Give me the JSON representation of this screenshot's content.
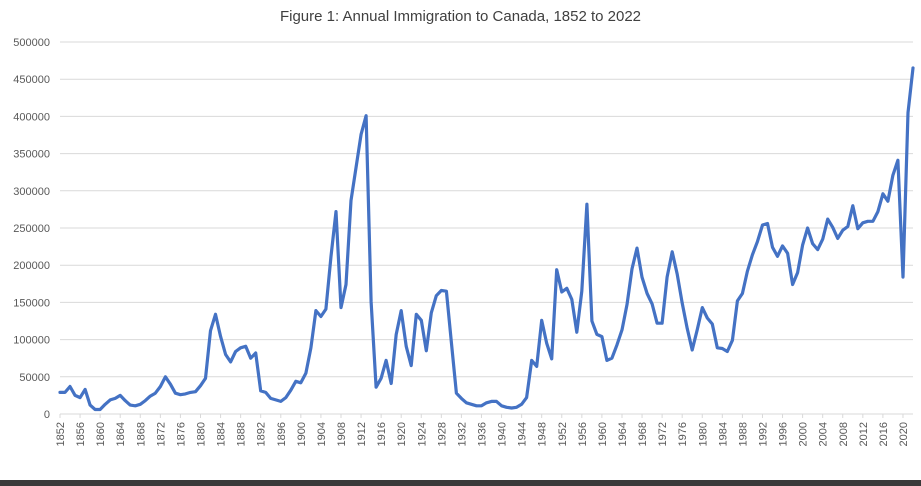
{
  "colors": {
    "line": "#4472C4",
    "grid": "#D9D9D9",
    "text": "#595959",
    "title": "#404040"
  },
  "chart_data": {
    "type": "line",
    "title": "Figure 1: Annual Immigration to Canada, 1852 to 2022",
    "xlabel": "",
    "ylabel": "",
    "xlim": [
      1852,
      2022
    ],
    "ylim": [
      0,
      500000
    ],
    "grid": true,
    "legend": "none",
    "y_ticks": [
      0,
      50000,
      100000,
      150000,
      200000,
      250000,
      300000,
      350000,
      400000,
      450000,
      500000
    ],
    "y_tick_labels": [
      "0",
      "50000",
      "100000",
      "150000",
      "200000",
      "250000",
      "300000",
      "350000",
      "400000",
      "450000",
      "500000"
    ],
    "x_ticks": [
      1852,
      1856,
      1860,
      1864,
      1868,
      1872,
      1876,
      1880,
      1884,
      1888,
      1892,
      1896,
      1900,
      1904,
      1908,
      1912,
      1916,
      1920,
      1924,
      1928,
      1932,
      1936,
      1940,
      1944,
      1948,
      1952,
      1956,
      1960,
      1964,
      1968,
      1972,
      1976,
      1980,
      1984,
      1988,
      1992,
      1996,
      2000,
      2004,
      2008,
      2012,
      2016,
      2020
    ],
    "x_tick_labels": [
      "1852",
      "1856",
      "1860",
      "1864",
      "1868",
      "1872",
      "1876",
      "1880",
      "1884",
      "1888",
      "1892",
      "1896",
      "1900",
      "1904",
      "1908",
      "1912",
      "1916",
      "1920",
      "1924",
      "1928",
      "1932",
      "1936",
      "1940",
      "1944",
      "1948",
      "1952",
      "1956",
      "1960",
      "1964",
      "1968",
      "1972",
      "1976",
      "1980",
      "1984",
      "1988",
      "1992",
      "1996",
      "2000",
      "2004",
      "2008",
      "2012",
      "2016",
      "2020"
    ],
    "series": [
      {
        "name": "Annual Immigration",
        "x": [
          1852,
          1853,
          1854,
          1855,
          1856,
          1857,
          1858,
          1859,
          1860,
          1861,
          1862,
          1863,
          1864,
          1865,
          1866,
          1867,
          1868,
          1869,
          1870,
          1871,
          1872,
          1873,
          1874,
          1875,
          1876,
          1877,
          1878,
          1879,
          1880,
          1881,
          1882,
          1883,
          1884,
          1885,
          1886,
          1887,
          1888,
          1889,
          1890,
          1891,
          1892,
          1893,
          1894,
          1895,
          1896,
          1897,
          1898,
          1899,
          1900,
          1901,
          1902,
          1903,
          1904,
          1905,
          1906,
          1907,
          1908,
          1909,
          1910,
          1911,
          1912,
          1913,
          1914,
          1915,
          1916,
          1917,
          1918,
          1919,
          1920,
          1921,
          1922,
          1923,
          1924,
          1925,
          1926,
          1927,
          1928,
          1929,
          1930,
          1931,
          1932,
          1933,
          1934,
          1935,
          1936,
          1937,
          1938,
          1939,
          1940,
          1941,
          1942,
          1943,
          1944,
          1945,
          1946,
          1947,
          1948,
          1949,
          1950,
          1951,
          1952,
          1953,
          1954,
          1955,
          1956,
          1957,
          1958,
          1959,
          1960,
          1961,
          1962,
          1963,
          1964,
          1965,
          1966,
          1967,
          1968,
          1969,
          1970,
          1971,
          1972,
          1973,
          1974,
          1975,
          1976,
          1977,
          1978,
          1979,
          1980,
          1981,
          1982,
          1983,
          1984,
          1985,
          1986,
          1987,
          1988,
          1989,
          1990,
          1991,
          1992,
          1993,
          1994,
          1995,
          1996,
          1997,
          1998,
          1999,
          2000,
          2001,
          2002,
          2003,
          2004,
          2005,
          2006,
          2007,
          2008,
          2009,
          2010,
          2011,
          2012,
          2013,
          2014,
          2015,
          2016,
          2017,
          2018,
          2019,
          2020,
          2021,
          2022
        ],
        "values": [
          29000,
          29000,
          37000,
          25000,
          22000,
          33000,
          12000,
          6000,
          6000,
          13000,
          19000,
          21000,
          25000,
          18000,
          12000,
          11000,
          13000,
          18000,
          24000,
          28000,
          37000,
          50000,
          40000,
          28000,
          26000,
          27000,
          29000,
          30000,
          38000,
          48000,
          112000,
          134000,
          104000,
          80000,
          70000,
          84000,
          89000,
          91000,
          75000,
          82000,
          31000,
          29000,
          21000,
          19000,
          17000,
          22000,
          32000,
          44000,
          42000,
          55000,
          89000,
          139000,
          131000,
          141000,
          212000,
          272000,
          143000,
          174000,
          287000,
          331000,
          376000,
          401000,
          151000,
          36000,
          48000,
          72000,
          41000,
          107000,
          139000,
          91000,
          65000,
          134000,
          126000,
          85000,
          136000,
          159000,
          166000,
          165000,
          96000,
          28000,
          21000,
          15000,
          13000,
          11000,
          11000,
          15000,
          17000,
          17000,
          11000,
          9000,
          8000,
          9000,
          13000,
          22000,
          72000,
          64000,
          126000,
          95000,
          74000,
          194000,
          164000,
          169000,
          154000,
          110000,
          165000,
          282000,
          125000,
          107000,
          104000,
          72000,
          75000,
          93000,
          113000,
          147000,
          195000,
          223000,
          184000,
          162000,
          148000,
          122000,
          122000,
          184000,
          218000,
          188000,
          149000,
          115000,
          86000,
          113000,
          143000,
          129000,
          121000,
          89000,
          88000,
          84000,
          99000,
          152000,
          162000,
          192000,
          214000,
          232000,
          254000,
          256000,
          224000,
          212000,
          226000,
          216000,
          174000,
          190000,
          227000,
          250000,
          229000,
          221000,
          235000,
          262000,
          251000,
          236000,
          247000,
          252000,
          280000,
          249000,
          257000,
          259000,
          259000,
          272000,
          296000,
          286000,
          321000,
          341000,
          184000,
          405000,
          465000
        ]
      }
    ]
  }
}
